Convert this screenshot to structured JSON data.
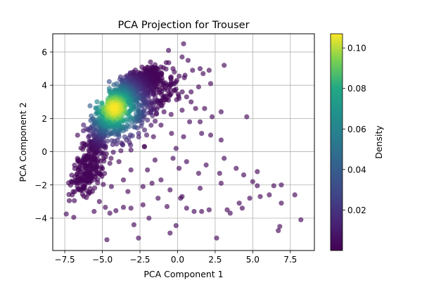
{
  "chart_data": {
    "type": "scatter",
    "title": "PCA Projection for Trouser",
    "xlabel": "PCA Component 1",
    "ylabel": "PCA Component 2",
    "xlim": [
      -8.3,
      9.1
    ],
    "ylim": [
      -5.95,
      7.1
    ],
    "xticks": [
      -7.5,
      -5.0,
      -2.5,
      0.0,
      2.5,
      5.0,
      7.5
    ],
    "xtick_labels": [
      "−7.5",
      "−5.0",
      "−2.5",
      "0.0",
      "2.5",
      "5.0",
      "7.5"
    ],
    "yticks": [
      -4,
      -2,
      0,
      2,
      4,
      6
    ],
    "ytick_labels": [
      "−4",
      "−2",
      "0",
      "2",
      "4",
      "6"
    ],
    "grid": true,
    "marker_alpha": 0.65,
    "colormap": "viridis",
    "colorbar": {
      "label": "Density",
      "range": [
        0.0,
        0.107
      ],
      "ticks": [
        0.02,
        0.04,
        0.06,
        0.08,
        0.1
      ],
      "tick_labels": [
        "0.02",
        "0.04",
        "0.06",
        "0.08",
        "0.10"
      ]
    },
    "dense_band": {
      "description": "main ridge of densely packed points",
      "ridge": [
        [
          -6.4,
          -2.2
        ],
        [
          -5.8,
          -0.6
        ],
        [
          -5.0,
          1.4
        ],
        [
          -4.3,
          2.6
        ],
        [
          -3.7,
          3.3
        ],
        [
          -3.0,
          3.9
        ],
        [
          -2.3,
          4.4
        ],
        [
          -1.6,
          4.6
        ]
      ],
      "peak_density_point": [
        -4.2,
        2.6
      ]
    },
    "sparse_points": [
      [
        -7.4,
        -3.75
      ],
      [
        -7.2,
        -2.95
      ],
      [
        -6.9,
        -3.95
      ],
      [
        -7.0,
        -2.6
      ],
      [
        -5.55,
        -3.6
      ],
      [
        -5.2,
        -3.0
      ],
      [
        -4.8,
        -3.35
      ],
      [
        -4.5,
        -3.7
      ],
      [
        -4.7,
        -5.3
      ],
      [
        -4.1,
        -3.55
      ],
      [
        -3.6,
        -3.35
      ],
      [
        -3.1,
        -3.4
      ],
      [
        -2.9,
        -4.4
      ],
      [
        -2.6,
        -5.2
      ],
      [
        -2.3,
        -3.2
      ],
      [
        -1.9,
        -4.0
      ],
      [
        -1.3,
        -2.8
      ],
      [
        -0.7,
        -3.3
      ],
      [
        -0.5,
        -4.9
      ],
      [
        -0.1,
        -4.45
      ],
      [
        0.2,
        -2.8
      ],
      [
        0.3,
        -2.7
      ],
      [
        0.6,
        -3.4
      ],
      [
        1.1,
        -3.6
      ],
      [
        1.5,
        -2.2
      ],
      [
        1.6,
        -3.6
      ],
      [
        2.1,
        -3.5
      ],
      [
        2.6,
        -5.2
      ],
      [
        3.3,
        -3.5
      ],
      [
        3.5,
        -3.7
      ],
      [
        4.1,
        -3.1
      ],
      [
        4.3,
        -3.4
      ],
      [
        4.8,
        -2.8
      ],
      [
        5.3,
        -2.05
      ],
      [
        5.5,
        -2.7
      ],
      [
        6.1,
        -2.6
      ],
      [
        6.4,
        -2.05
      ],
      [
        6.9,
        -2.0
      ],
      [
        6.9,
        -3.1
      ],
      [
        6.8,
        -4.5
      ],
      [
        6.7,
        -4.75
      ],
      [
        7.8,
        -2.6
      ],
      [
        8.2,
        -4.1
      ],
      [
        3.9,
        -1.0
      ],
      [
        4.4,
        -1.4
      ],
      [
        5.0,
        -1.8
      ],
      [
        5.3,
        -1.2
      ],
      [
        2.9,
        -1.9
      ],
      [
        2.8,
        -1.3
      ],
      [
        1.9,
        -0.8
      ],
      [
        1.4,
        -1.3
      ],
      [
        0.6,
        -0.6
      ],
      [
        0.1,
        -1.0
      ],
      [
        -0.5,
        -2.3
      ],
      [
        -1.1,
        -1.7
      ],
      [
        -1.7,
        -1.9
      ],
      [
        -2.3,
        -2.1
      ],
      [
        -3.3,
        -2.4
      ],
      [
        -3.6,
        -1.7
      ],
      [
        -4.4,
        -2.1
      ],
      [
        -3.1,
        -1.1
      ],
      [
        -2.0,
        -1.1
      ],
      [
        -1.5,
        -0.5
      ],
      [
        -0.3,
        -0.4
      ],
      [
        -3.9,
        -0.6
      ],
      [
        -4.5,
        -0.7
      ],
      [
        2.9,
        0.7
      ],
      [
        3.1,
        -0.4
      ],
      [
        2.2,
        1.0
      ],
      [
        1.6,
        1.1
      ],
      [
        2.3,
        2.1
      ],
      [
        2.9,
        2.4
      ],
      [
        4.6,
        2.1
      ],
      [
        1.8,
        2.6
      ],
      [
        1.2,
        2.6
      ],
      [
        0.8,
        1.8
      ],
      [
        0.4,
        0.9
      ],
      [
        -0.1,
        0.2
      ],
      [
        -0.4,
        1.1
      ],
      [
        -1.1,
        1.6
      ],
      [
        -1.6,
        0.9
      ],
      [
        -2.2,
        0.3
      ],
      [
        -2.0,
        1.9
      ],
      [
        -0.9,
        2.4
      ],
      [
        0.1,
        3.2
      ],
      [
        0.9,
        3.6
      ],
      [
        1.4,
        3.9
      ],
      [
        2.2,
        4.1
      ],
      [
        1.7,
        4.7
      ],
      [
        2.1,
        4.9
      ],
      [
        3.1,
        5.2
      ],
      [
        0.7,
        5.5
      ],
      [
        0.3,
        5.7
      ],
      [
        0.4,
        6.5
      ],
      [
        -0.6,
        6.1
      ],
      [
        -0.3,
        5.0
      ],
      [
        0.5,
        4.6
      ],
      [
        1.0,
        4.9
      ],
      [
        1.5,
        5.0
      ],
      [
        -1.1,
        5.1
      ],
      [
        -1.8,
        5.4
      ],
      [
        -1.3,
        4.2
      ],
      [
        -2.4,
        2.3
      ],
      [
        -2.9,
        1.5
      ],
      [
        -3.4,
        0.7
      ],
      [
        -3.1,
        0.1
      ],
      [
        1.5,
        1.8
      ],
      [
        -0.6,
        3.1
      ],
      [
        0.3,
        2.5
      ],
      [
        0.9,
        3.0
      ],
      [
        -0.2,
        4.1
      ],
      [
        0.6,
        3.3
      ]
    ]
  }
}
